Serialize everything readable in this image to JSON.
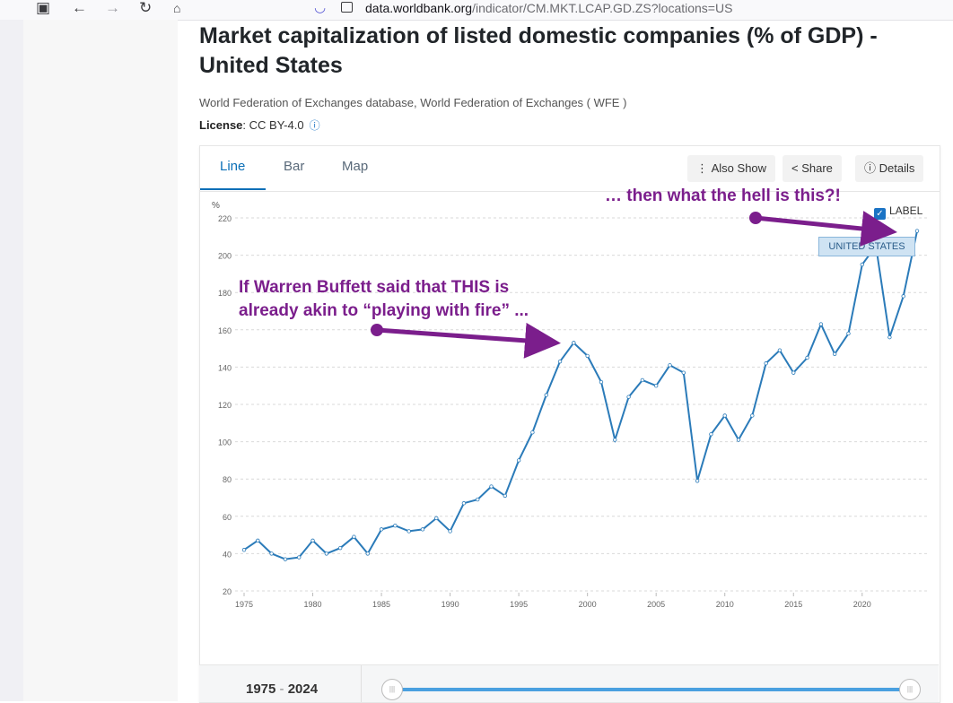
{
  "browser": {
    "url_host": "data.worldbank.org",
    "url_path": "/indicator/CM.MKT.LCAP.GD.ZS?locations=US"
  },
  "page": {
    "title": "Market capitalization of listed domestic companies (% of GDP) - United States",
    "source": "World Federation of Exchanges database, World Federation of Exchanges ( WFE )",
    "license_label": "License",
    "license_value": ": CC BY-4.0"
  },
  "tabs": [
    {
      "label": "Line"
    },
    {
      "label": "Bar"
    },
    {
      "label": "Map"
    }
  ],
  "toolbar": {
    "also_show": "Also Show",
    "share": "Share",
    "details": "Details"
  },
  "legend": {
    "label_toggle": "LABEL",
    "country_tag": "UNITED STATES"
  },
  "annotations": {
    "right": "… then what the hell is this?!",
    "left": "If Warren Buffett said that THIS is already akin to “playing with fire” ..."
  },
  "range": {
    "start": "1975",
    "sep": " - ",
    "end": "2024"
  },
  "colors": {
    "line": "#2b7bb9",
    "accent": "#0b6fb7",
    "annotation": "#7b1e8c"
  },
  "chart_data": {
    "type": "line",
    "title": "Market capitalization of listed domestic companies (% of GDP) - United States",
    "ylabel": "%",
    "xlabel": "",
    "ylim": [
      20,
      220
    ],
    "xlim": [
      1975,
      2024
    ],
    "yticks": [
      20,
      40,
      60,
      80,
      100,
      120,
      140,
      160,
      180,
      200,
      220
    ],
    "xticks": [
      1975,
      1980,
      1985,
      1990,
      1995,
      2000,
      2005,
      2010,
      2015,
      2020
    ],
    "series": [
      {
        "name": "United States",
        "x": [
          1975,
          1976,
          1977,
          1978,
          1979,
          1980,
          1981,
          1982,
          1983,
          1984,
          1985,
          1986,
          1987,
          1988,
          1989,
          1990,
          1991,
          1992,
          1993,
          1994,
          1995,
          1996,
          1997,
          1998,
          1999,
          2000,
          2001,
          2002,
          2003,
          2004,
          2005,
          2006,
          2007,
          2008,
          2009,
          2010,
          2011,
          2012,
          2013,
          2014,
          2015,
          2016,
          2017,
          2018,
          2019,
          2020,
          2021,
          2022,
          2023,
          2024
        ],
        "values": [
          42,
          47,
          40,
          37,
          38,
          47,
          40,
          43,
          49,
          40,
          53,
          55,
          52,
          53,
          59,
          52,
          67,
          69,
          76,
          71,
          90,
          105,
          125,
          143,
          153,
          146,
          132,
          101,
          124,
          133,
          130,
          141,
          137,
          79,
          104,
          114,
          101,
          114,
          142,
          149,
          137,
          145,
          163,
          147,
          158,
          195,
          205,
          156,
          178,
          213
        ]
      }
    ]
  }
}
